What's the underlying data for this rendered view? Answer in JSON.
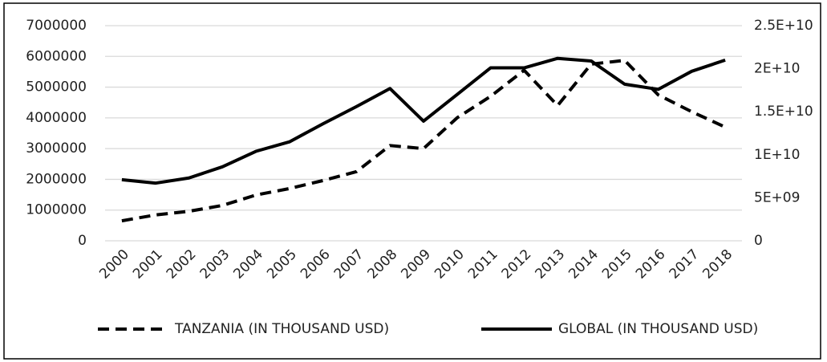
{
  "chart_data": {
    "type": "line",
    "categories": [
      "2000",
      "2001",
      "2002",
      "2003",
      "2004",
      "2005",
      "2006",
      "2007",
      "2008",
      "2009",
      "2010",
      "2011",
      "2012",
      "2013",
      "2014",
      "2015",
      "2016",
      "2017",
      "2018"
    ],
    "series": [
      {
        "name": "TANZANIA (IN THOUSAND USD)",
        "color": "#000000",
        "dash": true,
        "values": [
          650000,
          840000,
          960000,
          1150000,
          1490000,
          1700000,
          1960000,
          2250000,
          3100000,
          3000000,
          4000000,
          4700000,
          5550000,
          4400000,
          5750000,
          5870000,
          4750000,
          4200000,
          3700000
        ]
      },
      {
        "name": "GLOBAL (IN THOUSAND USD)",
        "color": "#000000",
        "dash": false,
        "axis": "y2",
        "values": [
          7100000000,
          6700000000,
          7300000000,
          8600000000,
          10400000000,
          11500000000,
          13600000000,
          15600000000,
          17700000000,
          13900000000,
          17000000000,
          20100000000,
          20100000000,
          21200000000,
          20900000000,
          18200000000,
          17600000000,
          19700000000,
          21000000000
        ]
      }
    ],
    "ylim": [
      0,
      7000000
    ],
    "yticks": [
      0,
      1000000,
      2000000,
      3000000,
      4000000,
      5000000,
      6000000,
      7000000
    ],
    "y2lim": [
      0,
      25000000000
    ],
    "y2ticks": [
      0,
      {
        "value": 5000000000,
        "label": "5E+09"
      },
      {
        "value": 10000000000,
        "label": "1E+10"
      },
      {
        "value": 15000000000,
        "label": "1.5E+10"
      },
      {
        "value": 20000000000,
        "label": "2E+10"
      },
      {
        "value": 25000000000,
        "label": "2.5E+10"
      }
    ],
    "grid": true,
    "legend": "bottom"
  }
}
